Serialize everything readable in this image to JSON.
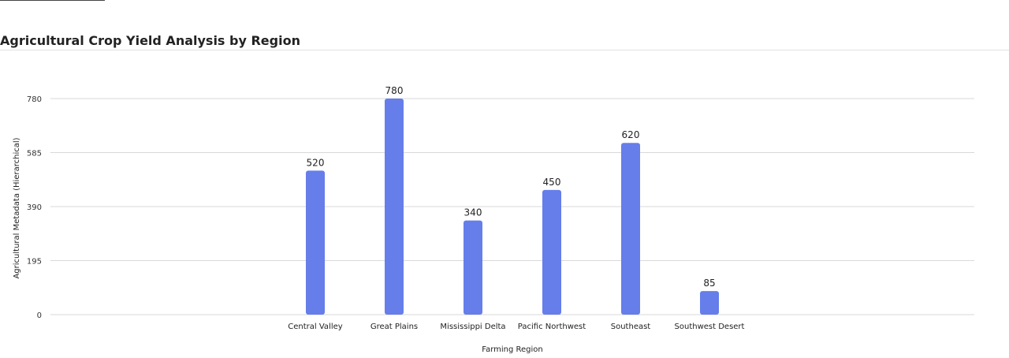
{
  "title": "Agricultural Crop Yield Analysis by Region",
  "colors": {
    "bar": "#667eea",
    "grid": "#d9d9d9"
  },
  "chart_data": {
    "type": "bar",
    "title": "Agricultural Crop Yield Analysis by Region",
    "xlabel": "Farming Region",
    "ylabel": "Agricultural Metadata (Hierarchical)",
    "categories": [
      "Central Valley",
      "Great Plains",
      "Mississippi Delta",
      "Pacific Northwest",
      "Southeast",
      "Southwest Desert"
    ],
    "values": [
      520,
      780,
      340,
      450,
      620,
      85
    ],
    "ylim": [
      0,
      780
    ],
    "yticks": [
      0,
      195,
      390,
      585,
      780
    ],
    "data_labels": true,
    "grid": true
  }
}
